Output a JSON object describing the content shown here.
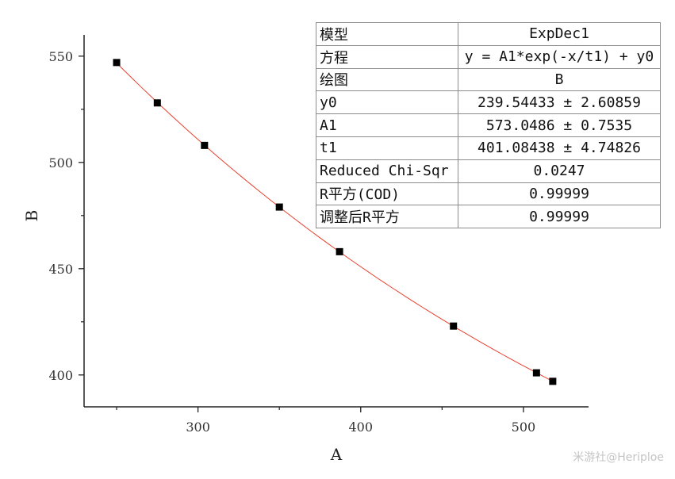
{
  "chart_data": {
    "type": "scatter",
    "xlabel": "A",
    "ylabel": "B",
    "xlim": [
      230,
      540
    ],
    "ylim": [
      385,
      560
    ],
    "xticks": [
      300,
      400,
      500
    ],
    "yticks": [
      400,
      450,
      500,
      550
    ],
    "grid": false,
    "series": [
      {
        "marker": "square",
        "color": "#000000",
        "x": [
          250,
          275,
          304,
          350,
          387,
          457,
          508,
          518
        ],
        "y": [
          547,
          528,
          508,
          479,
          458,
          423,
          401,
          397
        ]
      }
    ],
    "fit": {
      "color": "#e8412e",
      "x_range": [
        250,
        518
      ],
      "y0": 239.54433,
      "A1": 573.0486,
      "t1": 401.08438
    },
    "table": {
      "rows": [
        {
          "label": "模型",
          "value": "ExpDec1"
        },
        {
          "label": "方程",
          "value": "y = A1*exp(-x/t1) + y0"
        },
        {
          "label": "绘图",
          "value": "B"
        },
        {
          "label": "y0",
          "value": "239.54433 ± 2.60859"
        },
        {
          "label": "A1",
          "value": "573.0486 ± 0.7535"
        },
        {
          "label": "t1",
          "value": "401.08438 ± 4.74826"
        },
        {
          "label": "Reduced Chi-Sqr",
          "value": "0.0247"
        },
        {
          "label": "R平方(COD)",
          "value": "0.99999"
        },
        {
          "label": "调整后R平方",
          "value": "0.99999"
        }
      ]
    }
  },
  "watermark": "米游社@Heriploe"
}
